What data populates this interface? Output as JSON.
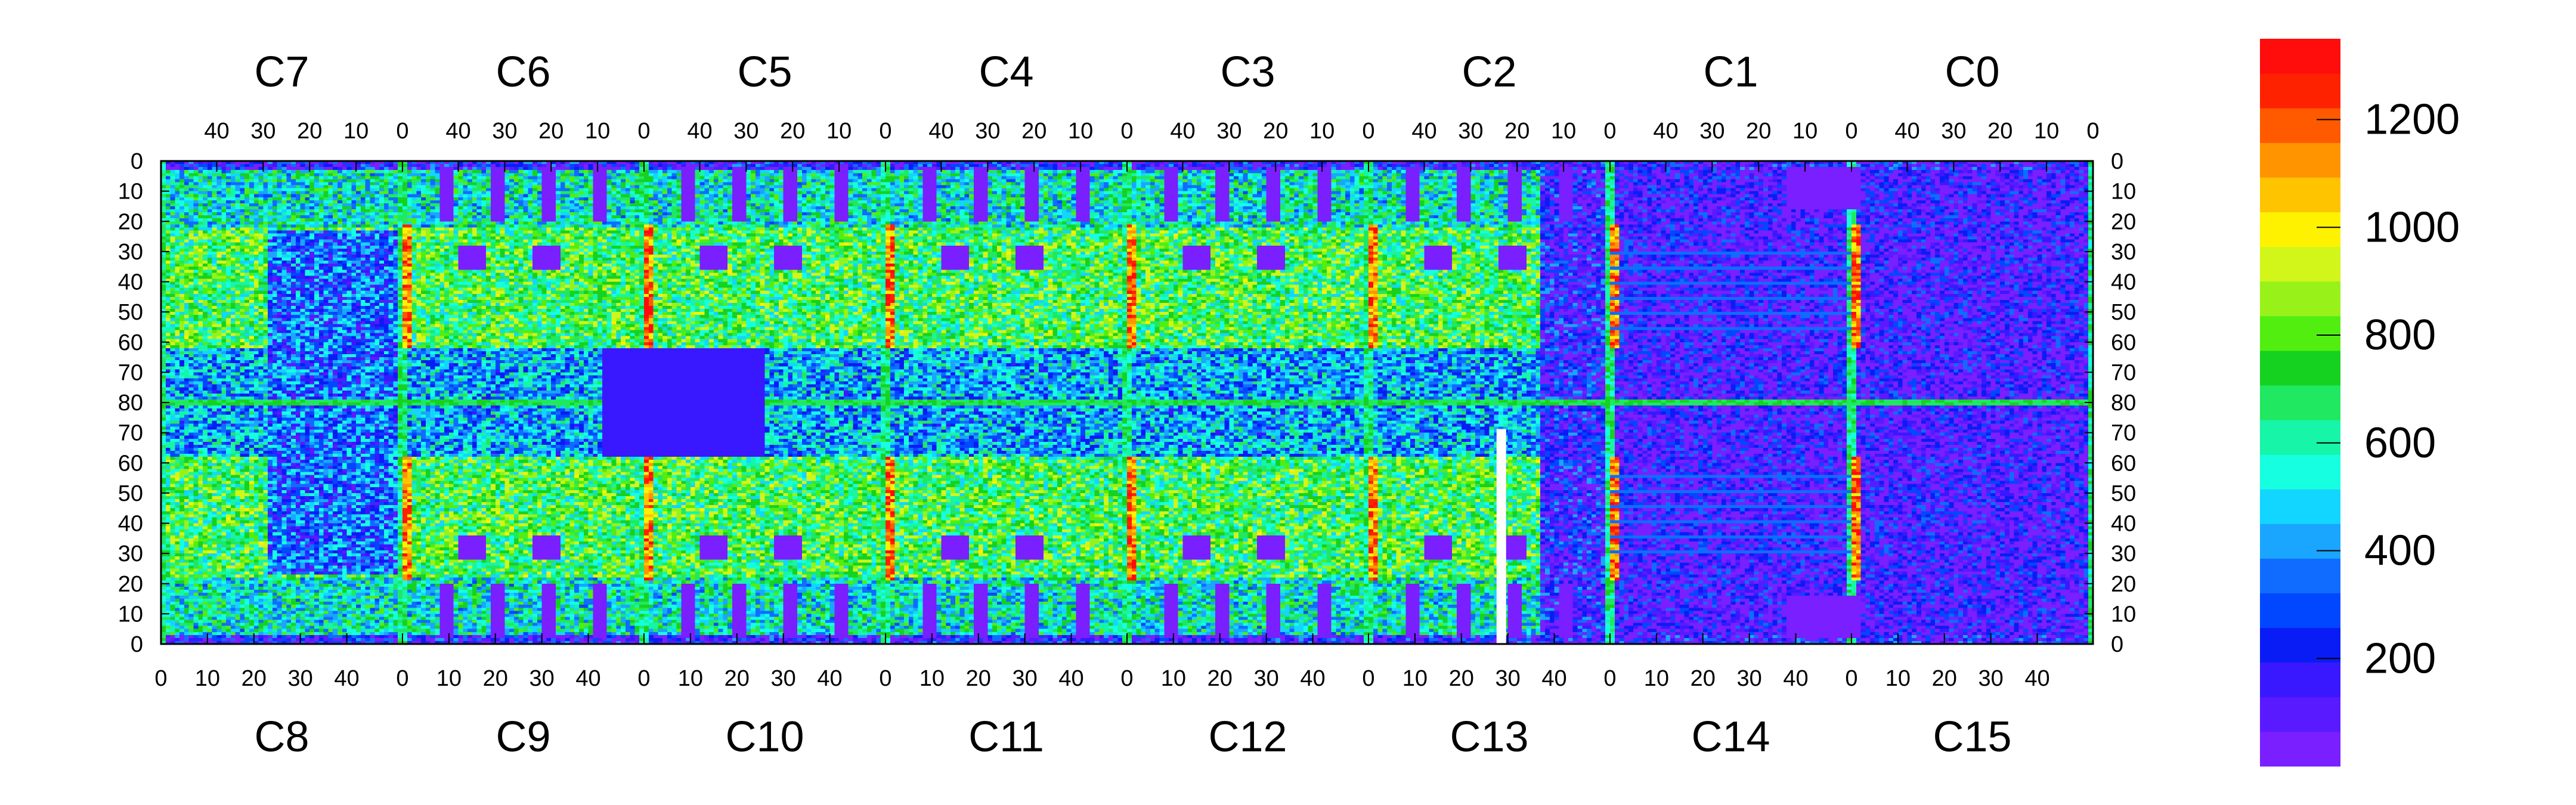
{
  "chart_data": {
    "type": "heatmap",
    "title": "",
    "top_chips": [
      "C7",
      "C6",
      "C5",
      "C4",
      "C3",
      "C2",
      "C1",
      "C0"
    ],
    "bottom_chips": [
      "C8",
      "C9",
      "C10",
      "C11",
      "C12",
      "C13",
      "C14",
      "C15"
    ],
    "top_xticks": [
      "40",
      "30",
      "20",
      "10",
      "0"
    ],
    "bottom_xticks": [
      "0",
      "10",
      "20",
      "30",
      "40"
    ],
    "y_ticks_top": [
      "0",
      "10",
      "20",
      "30",
      "40",
      "50",
      "60",
      "70",
      "80"
    ],
    "y_ticks_bottom": [
      "70",
      "60",
      "50",
      "40",
      "30",
      "20",
      "10",
      "0"
    ],
    "columns_per_chip": 52,
    "rows_per_half": 80,
    "zlim": [
      0,
      1350
    ],
    "colorbar_ticks": [
      "200",
      "400",
      "600",
      "800",
      "1000",
      "1200"
    ],
    "colorbar_tick_values": [
      200,
      400,
      600,
      800,
      1000,
      1200
    ],
    "palette": [
      "#7a1fff",
      "#5a1aff",
      "#3a18ff",
      "#0a1cf5",
      "#0047ff",
      "#0f6cff",
      "#1aa5ff",
      "#12d6ff",
      "#16ffe0",
      "#16f5a8",
      "#20e860",
      "#16d220",
      "#52ee10",
      "#98f21a",
      "#d2f51a",
      "#fff200",
      "#ffc400",
      "#ff9400",
      "#ff5a00",
      "#ff2200",
      "#ff0c0c"
    ]
  }
}
